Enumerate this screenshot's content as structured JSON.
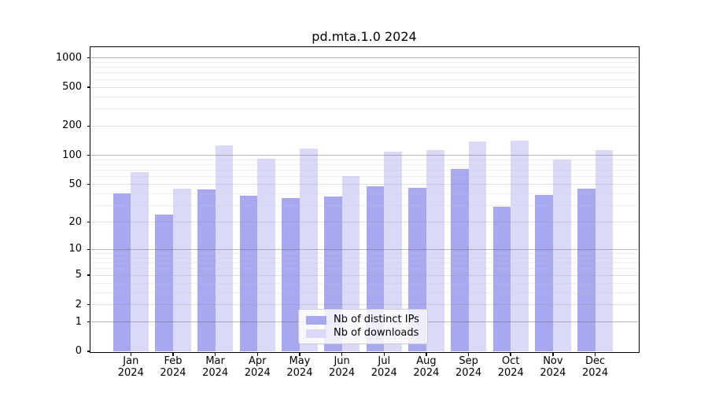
{
  "title": "pd.mta.1.0 2024",
  "chart_data": {
    "type": "bar",
    "title": "pd.mta.1.0 2024",
    "categories": [
      "Jan",
      "Feb",
      "Mar",
      "Apr",
      "May",
      "Jun",
      "Jul",
      "Aug",
      "Sep",
      "Oct",
      "Nov",
      "Dec"
    ],
    "x_year": "2024",
    "series": [
      {
        "name": "Nb of distinct IPs",
        "color": "#a8a8f0",
        "values": [
          40,
          24,
          44,
          38,
          36,
          37,
          48,
          46,
          72,
          29,
          39,
          45
        ]
      },
      {
        "name": "Nb of downloads",
        "color": "#dadaf8",
        "values": [
          67,
          45,
          127,
          92,
          117,
          61,
          109,
          113,
          138,
          142,
          90,
          114
        ]
      }
    ],
    "yscale": "log1p",
    "yticks": [
      0,
      1,
      2,
      5,
      10,
      20,
      50,
      100,
      200,
      500,
      1000
    ],
    "ylim": [
      0,
      1290
    ],
    "grid": true,
    "legend_position": "lower center",
    "xlabel": "",
    "ylabel": ""
  }
}
